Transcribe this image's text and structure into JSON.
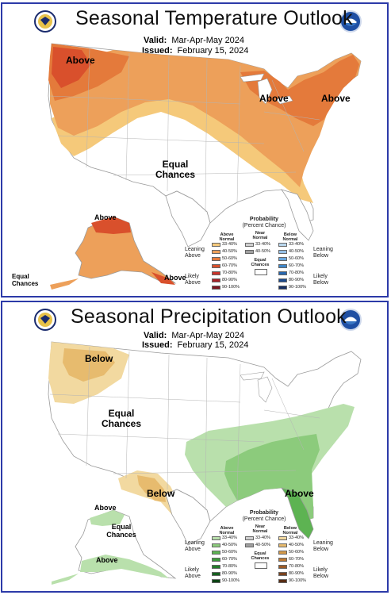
{
  "temperature_outlook": {
    "title": "Seasonal Temperature Outlook",
    "valid_label": "Valid:",
    "valid_value": "Mar-Apr-May 2024",
    "issued_label": "Issued:",
    "issued_value": "February 15, 2024",
    "labels": {
      "above_west": "Above",
      "above_michigan": "Above",
      "above_northeast": "Above",
      "equal_chances_center": "Equal Chances",
      "above_alaska": "Above",
      "above_alaska_se": "Above",
      "equal_chances_alaska": "Equal Chances"
    },
    "legend": {
      "title": "Probability",
      "subtitle": "(Percent Chance)",
      "col_above": "Above Normal",
      "col_near": "Near Normal",
      "col_below": "Below Normal",
      "side_left_top": "Leaning Above",
      "side_left_bottom": "Likely Above",
      "side_right_top": "Leaning Below",
      "side_right_bottom": "Likely Below",
      "equal_chances": "Equal Chances",
      "above_rows": [
        "33-40%",
        "40-50%",
        "50-60%",
        "60-70%",
        "70-80%",
        "80-90%",
        "90-100%"
      ],
      "near_rows": [
        "33-40%",
        "40-50%"
      ],
      "below_rows": [
        "33-40%",
        "40-50%",
        "50-60%",
        "60-70%",
        "70-80%",
        "80-90%",
        "90-100%"
      ],
      "above_colors": [
        "#f5c97a",
        "#eda05a",
        "#e47a3b",
        "#d9502c",
        "#c9332a",
        "#a82227",
        "#7c1620"
      ],
      "near_colors": [
        "#d0d0d0",
        "#a0a0a0"
      ],
      "below_colors": [
        "#b9d7ee",
        "#96c0e6",
        "#6aa6dc",
        "#3e86c9",
        "#2766ad",
        "#1c4a8c",
        "#152f63"
      ]
    }
  },
  "precipitation_outlook": {
    "title": "Seasonal Precipitation Outlook",
    "valid_label": "Valid:",
    "valid_value": "Mar-Apr-May 2024",
    "issued_label": "Issued:",
    "issued_value": "February 15, 2024",
    "labels": {
      "below_northwest": "Below",
      "equal_chances_center": "Equal Chances",
      "below_southwest": "Below",
      "above_southeast": "Above",
      "above_alaska": "Above",
      "equal_chances_alaska": "Equal Chances",
      "above_alaska_south": "Above"
    },
    "legend": {
      "title": "Probability",
      "subtitle": "(Percent Chance)",
      "col_above": "Above Normal",
      "col_near": "Near Normal",
      "col_below": "Below Normal",
      "side_left_top": "Leaning Above",
      "side_left_bottom": "Likely Above",
      "side_right_top": "Leaning Below",
      "side_right_bottom": "Likely Below",
      "equal_chances": "Equal Chances",
      "above_rows": [
        "33-40%",
        "40-50%",
        "50-60%",
        "60-70%",
        "70-80%",
        "80-90%",
        "90-100%"
      ],
      "near_rows": [
        "33-40%",
        "40-50%"
      ],
      "below_rows": [
        "33-40%",
        "40-50%",
        "50-60%",
        "60-70%",
        "70-80%",
        "80-90%",
        "90-100%"
      ],
      "above_colors": [
        "#b9e0ac",
        "#8ccb7c",
        "#5db352",
        "#3c9a3a",
        "#237d2a",
        "#15601e",
        "#0c4314"
      ],
      "near_colors": [
        "#d0d0d0",
        "#a0a0a0"
      ],
      "below_colors": [
        "#f2d9a0",
        "#e7bb6e",
        "#d49a4a",
        "#bd7a35",
        "#9c5b27",
        "#7a421d",
        "#582d14"
      ]
    }
  }
}
